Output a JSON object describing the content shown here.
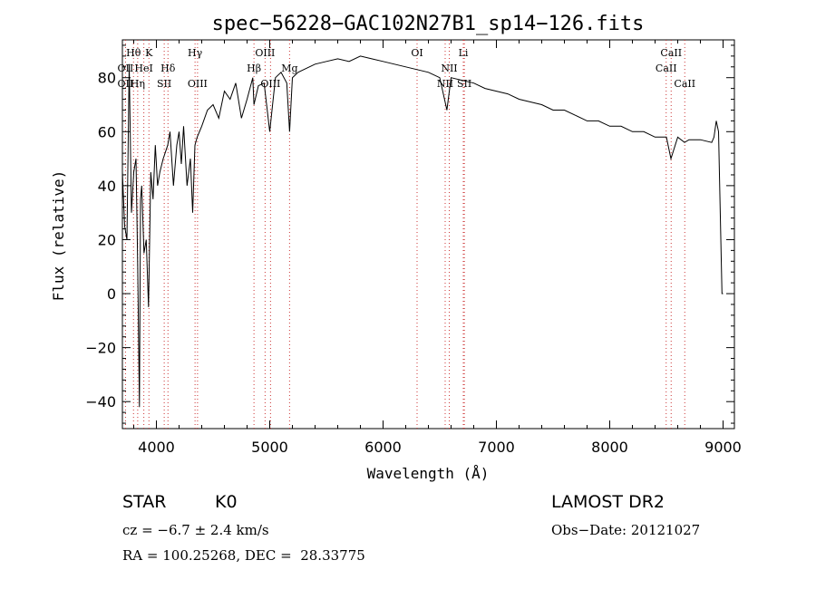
{
  "chart_data": {
    "type": "line",
    "title": "spec−56228−GAC102N27B1_sp14−126.fits",
    "xlabel": "Wavelength (Å)",
    "ylabel": "Flux (relative)",
    "xlim": [
      3700,
      9100
    ],
    "ylim": [
      -50,
      94
    ],
    "x_ticks": [
      4000,
      5000,
      6000,
      7000,
      8000,
      9000
    ],
    "x_tick_labels": [
      "4000",
      "5000",
      "6000",
      "7000",
      "8000",
      "9000"
    ],
    "y_ticks": [
      -40,
      -20,
      0,
      20,
      40,
      60,
      80
    ],
    "y_tick_labels": [
      "−40",
      "−20",
      "0",
      "20",
      "40",
      "60",
      "80"
    ],
    "grid": false,
    "line_color": "#000000",
    "marker_color": "#cc3333",
    "series": [
      {
        "x": [
          3700,
          3720,
          3740,
          3760,
          3780,
          3800,
          3820,
          3835,
          3850,
          3860,
          3870,
          3890,
          3910,
          3930,
          3950,
          3970,
          3990,
          4010,
          4030,
          4060,
          4100,
          4120,
          4150,
          4180,
          4200,
          4220,
          4240,
          4270,
          4300,
          4320,
          4340,
          4360,
          4400,
          4450,
          4500,
          4550,
          4600,
          4650,
          4700,
          4750,
          4800,
          4850,
          4861,
          4900,
          4950,
          5000,
          5050,
          5100,
          5150,
          5175,
          5200,
          5250,
          5300,
          5400,
          5500,
          5600,
          5700,
          5800,
          5900,
          6000,
          6100,
          6200,
          6300,
          6400,
          6500,
          6563,
          6600,
          6700,
          6800,
          6900,
          7000,
          7100,
          7200,
          7300,
          7400,
          7500,
          7600,
          7700,
          7800,
          7900,
          8000,
          8100,
          8200,
          8300,
          8400,
          8500,
          8540,
          8600,
          8660,
          8700,
          8800,
          8900,
          8920,
          8940,
          8960,
          8975,
          8990,
          9000
        ],
        "y": [
          45,
          25,
          20,
          85,
          30,
          45,
          50,
          10,
          -42,
          35,
          40,
          15,
          20,
          -5,
          45,
          35,
          55,
          40,
          45,
          50,
          55,
          60,
          40,
          55,
          60,
          48,
          62,
          40,
          50,
          30,
          55,
          58,
          62,
          68,
          70,
          65,
          75,
          72,
          78,
          65,
          72,
          80,
          70,
          77,
          78,
          60,
          80,
          82,
          78,
          60,
          80,
          82,
          83,
          85,
          86,
          87,
          86,
          88,
          87,
          86,
          85,
          84,
          83,
          82,
          80,
          68,
          80,
          79,
          78,
          76,
          75,
          74,
          72,
          71,
          70,
          68,
          68,
          66,
          64,
          64,
          62,
          62,
          60,
          60,
          58,
          58,
          50,
          58,
          56,
          57,
          57,
          56,
          58,
          64,
          60,
          30,
          0,
          0
        ]
      }
    ],
    "annotations": [
      {
        "label": "Hθ",
        "x": 3798,
        "row": 1
      },
      {
        "label": "K",
        "x": 3934,
        "row": 1
      },
      {
        "label": "Hγ",
        "x": 4341,
        "row": 1
      },
      {
        "label": "OIII",
        "x": 4959,
        "row": 1
      },
      {
        "label": "OI",
        "x": 6300,
        "row": 1
      },
      {
        "label": "Li",
        "x": 6708,
        "row": 1
      },
      {
        "label": "CaII",
        "x": 8542,
        "row": 1
      },
      {
        "label": "OII",
        "x": 3727,
        "row": 2
      },
      {
        "label": "HeI",
        "x": 3889,
        "row": 2
      },
      {
        "label": "Hδ",
        "x": 4102,
        "row": 2
      },
      {
        "label": "Hβ",
        "x": 4861,
        "row": 2
      },
      {
        "label": "Mg",
        "x": 5175,
        "row": 2
      },
      {
        "label": "NII",
        "x": 6584,
        "row": 2
      },
      {
        "label": "CaII",
        "x": 8498,
        "row": 2
      },
      {
        "label": "OII",
        "x": 3727,
        "row": 3
      },
      {
        "label": "Hη",
        "x": 3835,
        "row": 3
      },
      {
        "label": "SII",
        "x": 4069,
        "row": 3
      },
      {
        "label": "OIII",
        "x": 4363,
        "row": 3
      },
      {
        "label": "OIII",
        "x": 5007,
        "row": 3
      },
      {
        "label": "NII",
        "x": 6548,
        "row": 3
      },
      {
        "label": "SII",
        "x": 6717,
        "row": 3
      },
      {
        "label": "CaII",
        "x": 8662,
        "row": 3
      }
    ],
    "marker_lines": [
      3727,
      3798,
      3835,
      3889,
      3934,
      4069,
      4102,
      4341,
      4363,
      4861,
      4959,
      5007,
      5175,
      6300,
      6548,
      6584,
      6717,
      6708,
      8498,
      8542,
      8662
    ]
  },
  "info": {
    "object_type": "STAR",
    "subclass": "K0",
    "survey": "LAMOST DR2",
    "redshift": "cz = −6.7 ± 2.4 km/s",
    "obs_date": "Obs−Date: 20121027",
    "coords": "RA = 100.25268, DEC =  28.33775"
  }
}
